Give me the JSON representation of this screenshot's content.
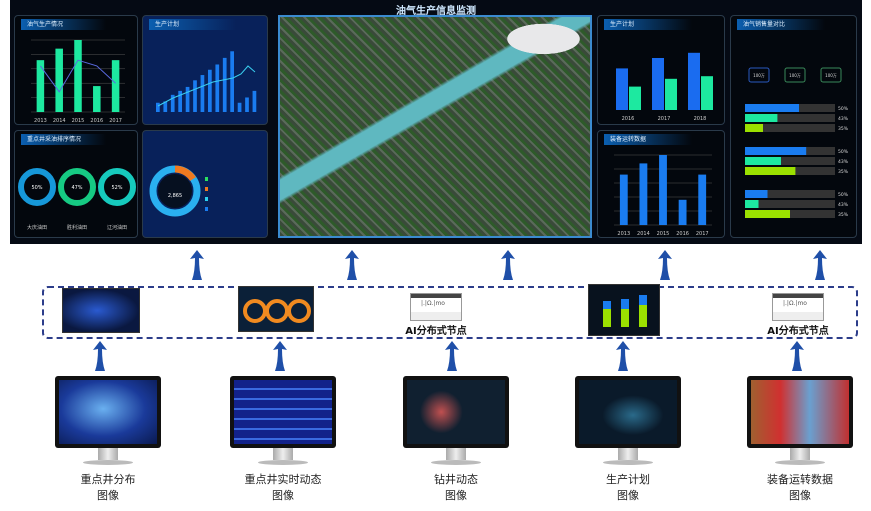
{
  "dashboard": {
    "title": "油气生产信息监测",
    "panels": {
      "oil_gas_production": {
        "title": "油气生产情况",
        "years": [
          "2013",
          "2014",
          "2015",
          "2016",
          "2017"
        ],
        "bars": [
          18,
          22,
          25,
          9,
          18
        ],
        "line": [
          16,
          7,
          18,
          16,
          10
        ],
        "ylim": [
          0,
          25
        ]
      },
      "production_plan": {
        "title": "生产计划",
        "bars": [
          70,
          80,
          130,
          160,
          190,
          240,
          280,
          320,
          360,
          410,
          460,
          70,
          110,
          160
        ]
      },
      "key_well_ranking": {
        "title": "重点井采油排序情况",
        "donuts": [
          {
            "value": "50%",
            "label": "大庆油田"
          },
          {
            "value": "47%",
            "label": "胜利油田"
          },
          {
            "value": "52%",
            "label": "辽河油田"
          }
        ]
      },
      "production_donut": {
        "center": "2,865"
      },
      "production_plan_right": {
        "title": "生产计划",
        "years": [
          "2016",
          "2017",
          "2018"
        ],
        "bars_a": [
          16,
          20,
          22
        ],
        "bars_b": [
          9,
          12,
          13
        ]
      },
      "equipment": {
        "title": "装备运转数据",
        "years": [
          "2013",
          "2014",
          "2015",
          "2016",
          "2017"
        ],
        "bars": [
          18,
          22,
          25,
          9,
          18
        ]
      },
      "sales": {
        "title": "油气销售量对比",
        "boxes": [
          "100万",
          "100万",
          "100万"
        ],
        "groups": [
          [
            50,
            43,
            35
          ],
          [
            50,
            43,
            35
          ],
          [
            50,
            43,
            35
          ]
        ],
        "fills": [
          [
            0.6,
            0.36,
            0.2
          ],
          [
            0.68,
            0.4,
            0.56
          ],
          [
            0.25,
            0.15,
            0.5
          ]
        ],
        "labels": [
          "50%",
          "43%",
          "35%"
        ]
      }
    }
  },
  "middle": {
    "node_label_1": "AI分布式节点",
    "node_label_2": "AI分布式节点",
    "server_text": "|.|Ω.|mo"
  },
  "monitors": [
    {
      "line1": "重点井分布",
      "line2": "图像"
    },
    {
      "line1": "重点井实时动态",
      "line2": "图像"
    },
    {
      "line1": "钻井动态",
      "line2": "图像"
    },
    {
      "line1": "生产计划",
      "line2": "图像"
    },
    {
      "line1": "装备运转数据",
      "line2": "图像"
    }
  ],
  "colors": {
    "arrow": "#1f4fa8",
    "dash_border": "#2c3d8a",
    "bar_green": "#1de9a0",
    "bar_blue": "#1a7cf0",
    "lime": "#9be000"
  }
}
